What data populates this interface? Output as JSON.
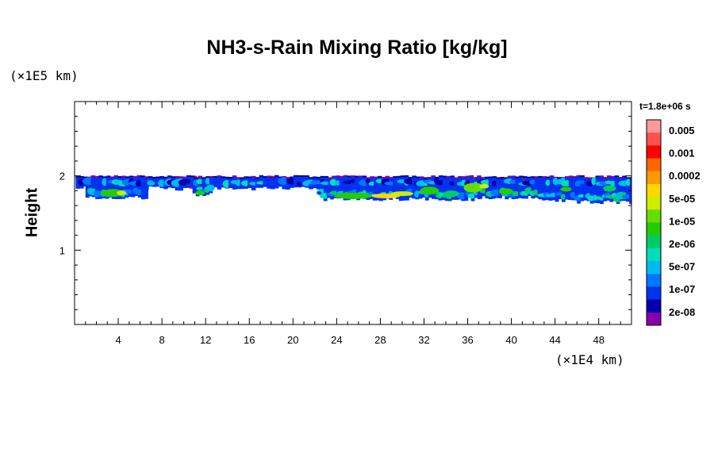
{
  "chart_data": {
    "type": "heatmap",
    "title": "NH3-s-Rain Mixing Ratio [kg/kg]",
    "ylabel": "Height",
    "y_unit_label": "(×1E5 km)",
    "x_unit_label": "(×1E4 km)",
    "time_label": "t=1.8e+06 s",
    "xlim": [
      0,
      51
    ],
    "ylim": [
      0,
      3
    ],
    "x_ticks": [
      4,
      8,
      12,
      16,
      20,
      24,
      28,
      32,
      36,
      40,
      44,
      48
    ],
    "y_ticks": [
      1,
      2
    ],
    "colorbar": {
      "colors": [
        "#ff9999",
        "#ff5050",
        "#ff0000",
        "#ff6600",
        "#ff9900",
        "#ffd700",
        "#ccee00",
        "#66dd00",
        "#22cc00",
        "#00cc66",
        "#00ddbb",
        "#00bbee",
        "#0077ff",
        "#0033ee",
        "#0000aa",
        "#8800aa"
      ],
      "labels": [
        "0.005",
        "0.001",
        "0.0002",
        "5e-05",
        "1e-05",
        "2e-06",
        "5e-07",
        "1e-07",
        "2e-08"
      ]
    },
    "field_summary": {
      "band_y_range": [
        1.65,
        2.0
      ],
      "description": "Thin layer of NH3-s-rain mixing ratio near height 1.7–2.0 across the full domain, mostly 1e-07 to 5e-05 kg/kg with peaks near x=25–38"
    }
  }
}
